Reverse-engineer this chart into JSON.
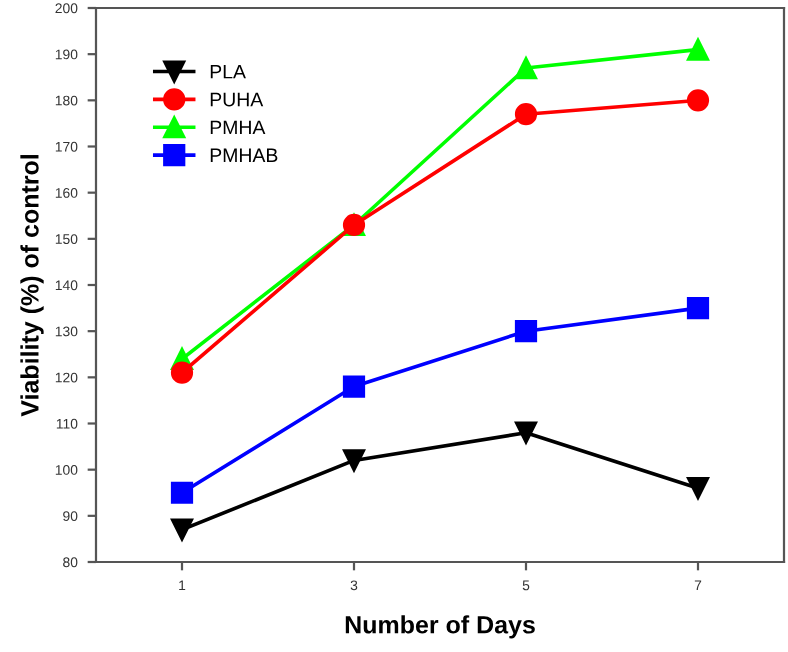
{
  "chart_data": {
    "type": "line",
    "xlabel": "Number of Days",
    "ylabel": "Viability (%) of control",
    "x": [
      1,
      3,
      5,
      7
    ],
    "xlim": [
      0,
      8
    ],
    "xticks": [
      1,
      3,
      5,
      7
    ],
    "ylim": [
      80,
      200
    ],
    "yticks": [
      80,
      90,
      100,
      110,
      120,
      130,
      140,
      150,
      160,
      170,
      180,
      190,
      200
    ],
    "grid": false,
    "legend": "top left",
    "line_style": "solid",
    "series": [
      {
        "name": "PLA",
        "color": "#000000",
        "marker": "triangle-down",
        "values": [
          87,
          102,
          108,
          96
        ]
      },
      {
        "name": "PUHA",
        "color": "#ff0000",
        "marker": "circle",
        "values": [
          121,
          153,
          177,
          180
        ]
      },
      {
        "name": "PMHA",
        "color": "#00ff00",
        "marker": "triangle",
        "values": [
          124,
          153,
          187,
          191
        ]
      },
      {
        "name": "PMHAB",
        "color": "#0000ff",
        "marker": "square",
        "values": [
          95,
          118,
          130,
          135
        ]
      }
    ]
  }
}
